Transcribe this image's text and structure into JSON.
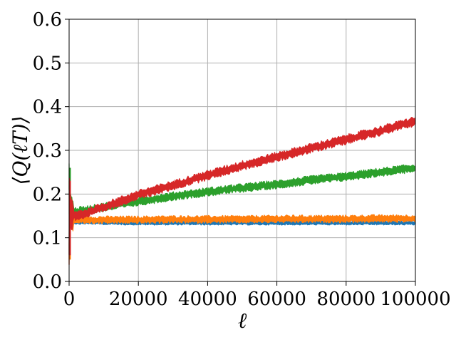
{
  "chart_data": {
    "type": "line",
    "xlabel": "ℓ",
    "ylabel": "⟨Q(ℓT)⟩",
    "xlim": [
      0,
      100000
    ],
    "ylim": [
      0.0,
      0.6
    ],
    "xticks": [
      0,
      20000,
      40000,
      60000,
      80000,
      100000
    ],
    "xtick_labels": [
      "0",
      "20000",
      "40000",
      "60000",
      "80000",
      "100000"
    ],
    "yticks": [
      0.0,
      0.1,
      0.2,
      0.3,
      0.4,
      0.5,
      0.6
    ],
    "ytick_labels": [
      "0.0",
      "0.1",
      "0.2",
      "0.3",
      "0.4",
      "0.5",
      "0.6"
    ],
    "grid": true,
    "series": [
      {
        "color": "#1f77b4",
        "band_halfwidth": 0.004,
        "x": [
          0,
          100,
          300,
          600,
          1000,
          2000,
          5000,
          10000,
          20000,
          30000,
          40000,
          50000,
          60000,
          70000,
          80000,
          90000,
          100000
        ],
        "y": [
          0.07,
          0.2,
          0.16,
          0.14,
          0.138,
          0.136,
          0.136,
          0.135,
          0.134,
          0.134,
          0.134,
          0.134,
          0.134,
          0.134,
          0.134,
          0.134,
          0.134
        ]
      },
      {
        "color": "#ff7f0e",
        "band_halfwidth": 0.007,
        "x": [
          0,
          100,
          300,
          600,
          1000,
          2000,
          5000,
          10000,
          20000,
          30000,
          40000,
          50000,
          60000,
          70000,
          80000,
          90000,
          100000
        ],
        "y": [
          0.06,
          0.21,
          0.17,
          0.15,
          0.142,
          0.141,
          0.141,
          0.141,
          0.141,
          0.142,
          0.142,
          0.142,
          0.143,
          0.143,
          0.143,
          0.144,
          0.144
        ]
      },
      {
        "color": "#2ca02c",
        "band_halfwidth": 0.008,
        "x": [
          0,
          100,
          300,
          600,
          1000,
          2000,
          5000,
          10000,
          20000,
          30000,
          40000,
          50000,
          60000,
          70000,
          80000,
          90000,
          100000
        ],
        "y": [
          0.24,
          0.2,
          0.18,
          0.165,
          0.158,
          0.16,
          0.163,
          0.17,
          0.183,
          0.195,
          0.205,
          0.214,
          0.222,
          0.232,
          0.24,
          0.25,
          0.26
        ]
      },
      {
        "color": "#d62728",
        "band_halfwidth": 0.009,
        "x": [
          0,
          100,
          300,
          600,
          1000,
          2000,
          5000,
          10000,
          20000,
          30000,
          40000,
          50000,
          60000,
          70000,
          80000,
          90000,
          100000
        ],
        "y": [
          0.07,
          0.21,
          0.17,
          0.155,
          0.15,
          0.151,
          0.156,
          0.17,
          0.198,
          0.22,
          0.243,
          0.265,
          0.285,
          0.305,
          0.325,
          0.345,
          0.367
        ]
      }
    ]
  }
}
